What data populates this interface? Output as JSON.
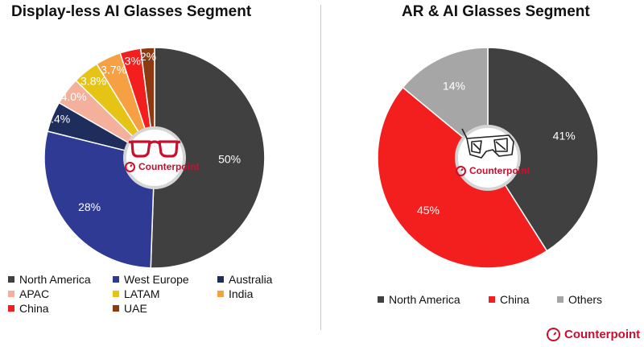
{
  "panels": [
    {
      "title": "Display-less AI Glasses Segment"
    },
    {
      "title": "AR & AI Glasses Segment"
    }
  ],
  "brand": {
    "name": "Counterpoint",
    "color": "#c8102e"
  },
  "icons": {
    "left_center": "eyeglasses-icon",
    "right_center": "3d-glasses-icon",
    "logo": "counterpoint-logo-icon"
  },
  "chart_data": [
    {
      "type": "pie",
      "title": "Display-less AI Glasses Segment",
      "slices": [
        {
          "label": "North America",
          "value": 50,
          "value_label": "50%",
          "color": "#404040"
        },
        {
          "label": "West Europe",
          "value": 28,
          "value_label": "28%",
          "color": "#2e3a93"
        },
        {
          "label": "Australia",
          "value": 4.4,
          "value_label": "4.4%",
          "color": "#1f2d5c"
        },
        {
          "label": "APAC",
          "value": 4.0,
          "value_label": "4.0%",
          "color": "#f4b09b"
        },
        {
          "label": "LATAM",
          "value": 3.8,
          "value_label": "3.8%",
          "color": "#e6c416"
        },
        {
          "label": "India",
          "value": 3.7,
          "value_label": "3.7%",
          "color": "#f5a042"
        },
        {
          "label": "China",
          "value": 3,
          "value_label": "3%",
          "color": "#f31f1f"
        },
        {
          "label": "UAE",
          "value": 2,
          "value_label": "2%",
          "color": "#8b3a12"
        }
      ],
      "legend_position": "bottom"
    },
    {
      "type": "pie",
      "title": "AR & AI Glasses Segment",
      "slices": [
        {
          "label": "North America",
          "value": 41,
          "value_label": "41%",
          "color": "#404040"
        },
        {
          "label": "China",
          "value": 45,
          "value_label": "45%",
          "color": "#f31f1f"
        },
        {
          "label": "Others",
          "value": 14,
          "value_label": "14%",
          "color": "#a6a6a6"
        }
      ],
      "legend_position": "bottom"
    }
  ]
}
